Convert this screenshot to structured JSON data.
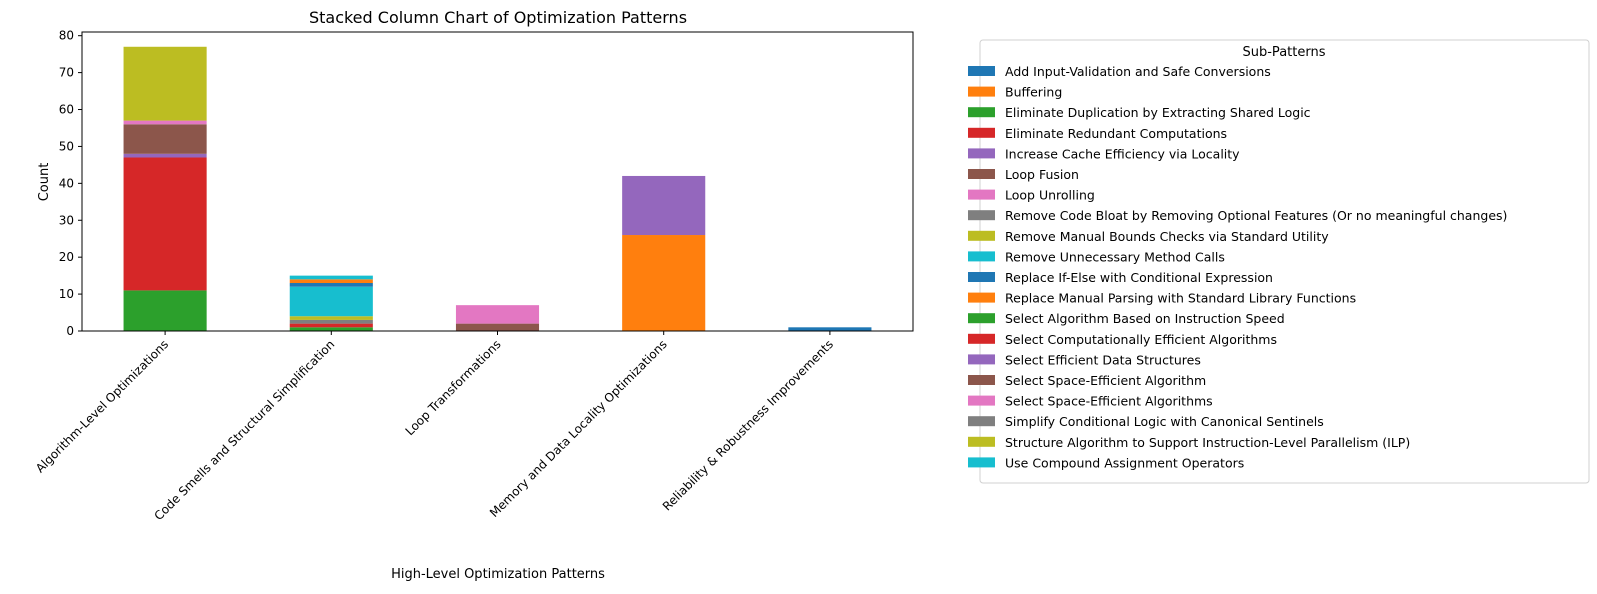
{
  "colors": [
    "#1f77b4",
    "#ff7f0e",
    "#2ca02c",
    "#d62728",
    "#9467bd",
    "#8c564b",
    "#e377c2",
    "#7f7f7f",
    "#bcbd22",
    "#17becf"
  ],
  "chart_data": {
    "type": "bar",
    "stacked": true,
    "title": "Stacked Column Chart of Optimization Patterns",
    "xlabel": "High-Level Optimization Patterns",
    "ylabel": "Count",
    "ylim": [
      0,
      81
    ],
    "yticks": [
      0,
      10,
      20,
      30,
      40,
      50,
      60,
      70,
      80
    ],
    "grid": false,
    "legend_title": "Sub-Patterns",
    "legend_position": "outside-right",
    "categories": [
      "Algorithm-Level Optimizations",
      "Code Smells and Structural Simplification",
      "Loop Transformations",
      "Memory and Data Locality Optimizations",
      "Reliability & Robustness Improvements"
    ],
    "series": [
      {
        "name": "Add Input-Validation and Safe Conversions",
        "values": [
          0,
          0,
          0,
          0,
          1
        ]
      },
      {
        "name": "Buffering",
        "values": [
          0,
          0,
          0,
          26,
          0
        ]
      },
      {
        "name": "Eliminate Duplication by Extracting Shared Logic",
        "values": [
          0,
          1,
          0,
          0,
          0
        ]
      },
      {
        "name": "Eliminate Redundant Computations",
        "values": [
          0,
          1,
          0,
          0,
          0
        ]
      },
      {
        "name": "Increase Cache Efficiency via Locality",
        "values": [
          0,
          0,
          0,
          0,
          0
        ]
      },
      {
        "name": "Loop Fusion",
        "values": [
          0,
          0,
          2,
          0,
          0
        ]
      },
      {
        "name": "Loop Unrolling",
        "values": [
          0,
          0,
          5,
          0,
          0
        ]
      },
      {
        "name": "Remove Code Bloat by Removing Optional Features (Or no meaningful changes)",
        "values": [
          0,
          1,
          0,
          0,
          0
        ]
      },
      {
        "name": "Remove Manual Bounds Checks via Standard Utility",
        "values": [
          0,
          1,
          0,
          0,
          0
        ]
      },
      {
        "name": "Remove Unnecessary Method Calls",
        "values": [
          0,
          8,
          0,
          0,
          0
        ]
      },
      {
        "name": "Replace If-Else with Conditional Expression",
        "values": [
          0,
          1,
          0,
          0,
          0
        ]
      },
      {
        "name": "Replace Manual Parsing with Standard Library Functions",
        "values": [
          0,
          1,
          0,
          0,
          0
        ]
      },
      {
        "name": "Select Algorithm Based on Instruction Speed",
        "values": [
          11,
          0,
          0,
          0,
          0
        ]
      },
      {
        "name": "Select Computationally Efficient Algorithms",
        "values": [
          36,
          0,
          0,
          0,
          0
        ]
      },
      {
        "name": "Select Efficient Data Structures",
        "values": [
          1,
          0,
          0,
          16,
          0
        ]
      },
      {
        "name": "Select Space-Efficient Algorithm",
        "values": [
          8,
          0,
          0,
          0,
          0
        ]
      },
      {
        "name": "Select Space-Efficient Algorithms",
        "values": [
          1,
          0,
          0,
          0,
          0
        ]
      },
      {
        "name": "Simplify Conditional Logic with Canonical Sentinels",
        "values": [
          0,
          0,
          0,
          0,
          0
        ]
      },
      {
        "name": "Structure Algorithm to Support Instruction-Level Parallelism (ILP)",
        "values": [
          20,
          0,
          0,
          0,
          0
        ]
      },
      {
        "name": "Use Compound Assignment Operators",
        "values": [
          0,
          1,
          0,
          0,
          0
        ]
      }
    ]
  }
}
